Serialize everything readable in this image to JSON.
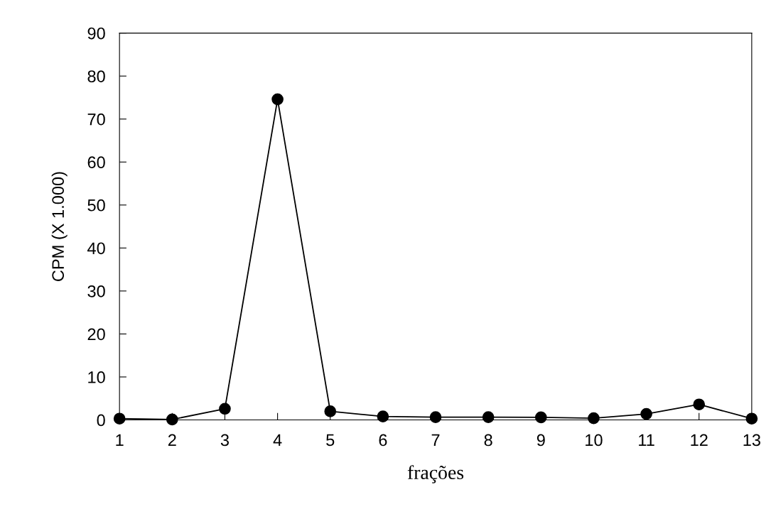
{
  "chart_data": {
    "type": "line",
    "xlabel": "frações",
    "ylabel": "CPM (X 1.000)",
    "x": [
      1,
      2,
      3,
      4,
      5,
      6,
      7,
      8,
      9,
      10,
      11,
      12,
      13
    ],
    "series": [
      {
        "color": "#000000",
        "values": [
          0.3,
          0.1,
          2.6,
          74.6,
          2.0,
          0.8,
          0.65,
          0.65,
          0.6,
          0.4,
          1.4,
          3.6,
          0.3
        ]
      }
    ],
    "xlim": [
      1,
      13
    ],
    "xticks": [
      1,
      2,
      3,
      4,
      5,
      6,
      7,
      8,
      9,
      10,
      11,
      12,
      13
    ],
    "ylim": [
      0,
      90
    ],
    "yticks": [
      0,
      10,
      20,
      30,
      40,
      50,
      60,
      70,
      80,
      90
    ],
    "marker": "circle",
    "line_style": "solid",
    "grid": false,
    "legend": false
  }
}
